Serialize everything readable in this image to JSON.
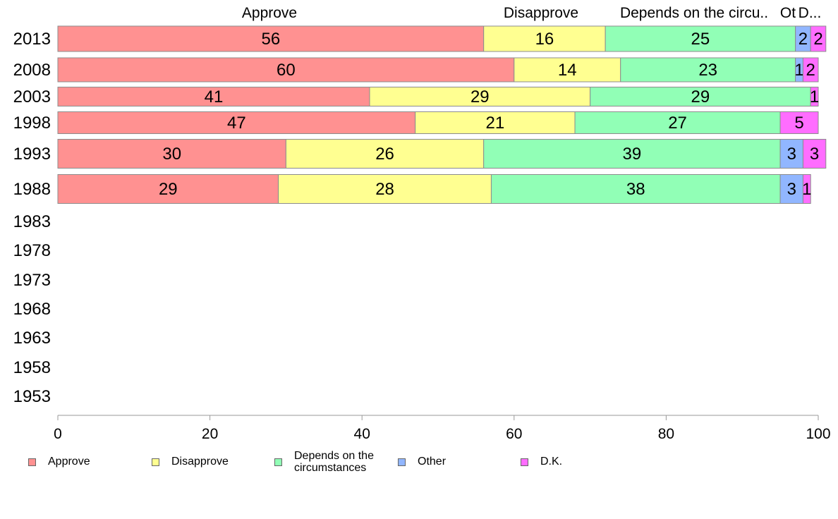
{
  "chart_data": {
    "type": "bar",
    "orientation": "horizontal",
    "stacked": true,
    "title": "",
    "xlabel": "",
    "ylabel": "",
    "xlim": [
      0,
      100
    ],
    "x_ticks": [
      "0",
      "20",
      "40",
      "60",
      "80",
      "100"
    ],
    "categories": [
      "2013",
      "2008",
      "2003",
      "1998",
      "1993",
      "1988",
      "1983",
      "1978",
      "1973",
      "1968",
      "1963",
      "1958",
      "1953"
    ],
    "top_labels": [
      "Approve",
      "Disapprove",
      "Depends on the circu..",
      "Ot",
      "D..."
    ],
    "series": [
      {
        "name": "Approve",
        "color": "#ff9191",
        "values": [
          56,
          60,
          41,
          47,
          30,
          29,
          null,
          null,
          null,
          null,
          null,
          null,
          null
        ]
      },
      {
        "name": "Disapprove",
        "color": "#ffff91",
        "values": [
          16,
          14,
          29,
          21,
          26,
          28,
          null,
          null,
          null,
          null,
          null,
          null,
          null
        ]
      },
      {
        "name": "Depends on the circumstances",
        "color": "#91ffb6",
        "values": [
          25,
          23,
          29,
          27,
          39,
          38,
          null,
          null,
          null,
          null,
          null,
          null,
          null
        ]
      },
      {
        "name": "Other",
        "color": "#91b6ff",
        "values": [
          2,
          1,
          0,
          0,
          3,
          3,
          null,
          null,
          null,
          null,
          null,
          null,
          null
        ]
      },
      {
        "name": "D.K.",
        "color": "#ff6dff",
        "values": [
          2,
          2,
          1,
          5,
          3,
          1,
          null,
          null,
          null,
          null,
          null,
          null,
          null
        ]
      }
    ],
    "legend_position": "bottom",
    "grid": false
  },
  "legend": [
    {
      "label": "Approve",
      "color": "#ff9191"
    },
    {
      "label": "Disapprove",
      "color": "#ffff91"
    },
    {
      "label": "Depends on the circumstances",
      "color": "#91ffb6"
    },
    {
      "label": "Other",
      "color": "#91b6ff"
    },
    {
      "label": "D.K.",
      "color": "#ff6dff"
    }
  ]
}
